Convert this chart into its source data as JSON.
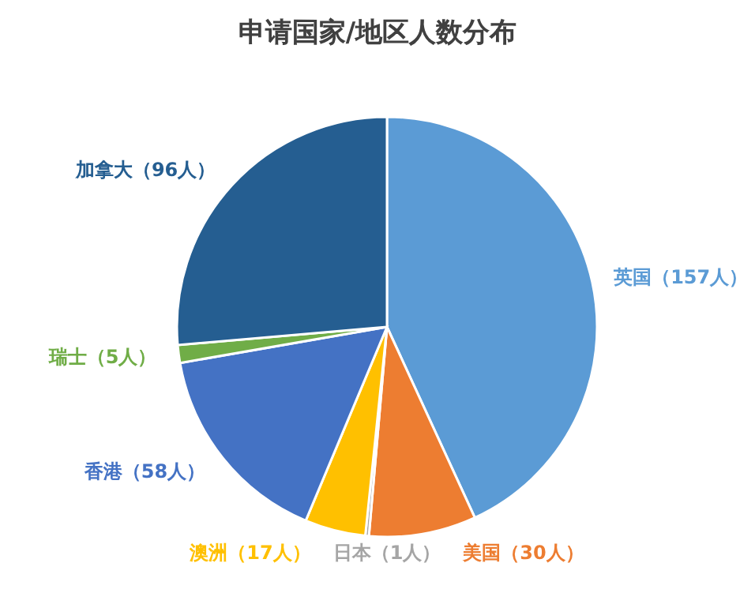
{
  "chart_data": {
    "type": "pie",
    "title": "申请国家/地区人数分布",
    "categories": [
      "英国",
      "美国",
      "日本",
      "澳洲",
      "香港",
      "瑞士",
      "加拿大"
    ],
    "values": [
      157,
      30,
      1,
      17,
      58,
      5,
      96
    ],
    "value_labels": [
      "（157人）",
      "（30人）",
      "（1人）",
      "（17人）",
      "（58人）",
      "（5人）",
      "（96人）"
    ],
    "colors": [
      "#5b9bd5",
      "#ed7d31",
      "#a5a5a5",
      "#ffc000",
      "#4472c4",
      "#70ad47",
      "#255e91"
    ],
    "legend": false
  }
}
